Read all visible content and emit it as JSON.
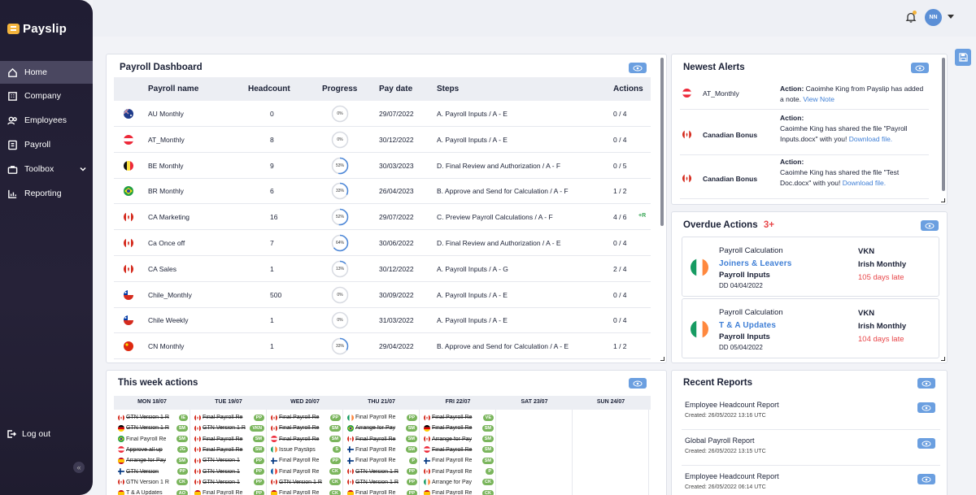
{
  "app": {
    "name": "Payslip"
  },
  "sidebar": {
    "items": [
      {
        "label": "Home",
        "icon": "home-icon"
      },
      {
        "label": "Company",
        "icon": "building-icon"
      },
      {
        "label": "Employees",
        "icon": "people-icon"
      },
      {
        "label": "Payroll",
        "icon": "payroll-icon"
      },
      {
        "label": "Toolbox",
        "icon": "toolbox-icon"
      },
      {
        "label": "Reporting",
        "icon": "chart-icon"
      }
    ],
    "logout": "Log out"
  },
  "topbar": {
    "avatar_initials": "NN"
  },
  "dashboard": {
    "title": "Payroll Dashboard",
    "columns": [
      "Payroll name",
      "Headcount",
      "Progress",
      "Pay date",
      "Steps",
      "Actions"
    ],
    "rows": [
      {
        "flag": "AU",
        "name": "AU Monthly",
        "headcount": "0",
        "progress": 0,
        "progress_label": "0%",
        "pay_date": "29/07/2022",
        "steps": "A. Payroll Inputs / A - E",
        "actions": "0 / 4",
        "extra": ""
      },
      {
        "flag": "AT",
        "name": "AT_Monthly",
        "headcount": "8",
        "progress": 0,
        "progress_label": "0%",
        "pay_date": "30/12/2022",
        "steps": "A. Payroll Inputs / A - E",
        "actions": "0 / 4",
        "extra": ""
      },
      {
        "flag": "BE",
        "name": "BE Monthly",
        "headcount": "9",
        "progress": 53,
        "progress_label": "53%",
        "pay_date": "30/03/2023",
        "steps": "D. Final Review and Authorization / A - F",
        "actions": "0 / 5",
        "extra": ""
      },
      {
        "flag": "BR",
        "name": "BR Monthly",
        "headcount": "6",
        "progress": 33,
        "progress_label": "33%",
        "pay_date": "26/04/2023",
        "steps": "B. Approve and Send for Calculation / A - F",
        "actions": "1 / 2",
        "extra": ""
      },
      {
        "flag": "CA",
        "name": "CA Marketing",
        "headcount": "16",
        "progress": 52,
        "progress_label": "52%",
        "pay_date": "29/07/2022",
        "steps": "C. Preview Payroll Calculations / A - F",
        "actions": "4 / 6",
        "extra": "+R"
      },
      {
        "flag": "CA",
        "name": "Ca Once off",
        "headcount": "7",
        "progress": 64,
        "progress_label": "64%",
        "pay_date": "30/06/2022",
        "steps": "D. Final Review and Authorization / A - E",
        "actions": "0 / 4",
        "extra": ""
      },
      {
        "flag": "CA",
        "name": "CA Sales",
        "headcount": "1",
        "progress": 13,
        "progress_label": "13%",
        "pay_date": "30/12/2022",
        "steps": "A. Payroll Inputs / A - G",
        "actions": "2 / 4",
        "extra": ""
      },
      {
        "flag": "CL",
        "name": "Chile_Monthly",
        "headcount": "500",
        "progress": 0,
        "progress_label": "0%",
        "pay_date": "30/09/2022",
        "steps": "A. Payroll Inputs / A - E",
        "actions": "0 / 4",
        "extra": ""
      },
      {
        "flag": "CL",
        "name": "Chile Weekly",
        "headcount": "1",
        "progress": 0,
        "progress_label": "0%",
        "pay_date": "31/03/2022",
        "steps": "A. Payroll Inputs / A - E",
        "actions": "0 / 4",
        "extra": ""
      },
      {
        "flag": "CN",
        "name": "CN Monthly",
        "headcount": "1",
        "progress": 33,
        "progress_label": "33%",
        "pay_date": "29/04/2022",
        "steps": "B. Approve and Send for Calculation / A - E",
        "actions": "1 / 2",
        "extra": ""
      }
    ]
  },
  "alerts": {
    "title": "Newest Alerts",
    "items": [
      {
        "flag": "AT",
        "name": "AT_Monthly",
        "label": "Action:",
        "text": "Caoimhe King from Payslip has added a note.",
        "link": "View Note"
      },
      {
        "flag": "CA",
        "name": "Canadian Bonus",
        "label": "Action:",
        "text": "Caoimhe King has shared the file \"Payroll Inputs.docx\" with you!",
        "link": "Download file."
      },
      {
        "flag": "CA",
        "name": "Canadian Bonus",
        "label": "Action:",
        "text": "Caoimhe King has shared the file \"Test Doc.docx\" with you!",
        "link": "Download file."
      }
    ]
  },
  "overdue": {
    "title": "Overdue Actions",
    "count": "3+",
    "items": [
      {
        "flag": "IE",
        "type": "Payroll Calculation",
        "link": "Joiners & Leavers",
        "step": "Payroll Inputs",
        "due": "DD 04/04/2022",
        "company": "VKN",
        "payroll": "Irish Monthly",
        "late": "105 days late"
      },
      {
        "flag": "IE",
        "type": "Payroll Calculation",
        "link": "T & A Updates",
        "step": "Payroll Inputs",
        "due": "DD 05/04/2022",
        "company": "VKN",
        "payroll": "Irish Monthly",
        "late": "104 days late"
      }
    ]
  },
  "week": {
    "title": "This week actions",
    "days": [
      "MON 18/07",
      "TUE 19/07",
      "WED 20/07",
      "THU 21/07",
      "FRI 22/07",
      "SAT 23/07",
      "SUN 24/07"
    ],
    "tasks": [
      [
        {
          "flag": "CA",
          "label": "GTN Version 1 R",
          "badge": "IE",
          "s": true
        },
        {
          "flag": "DE",
          "label": "GTN Version 1 R",
          "badge": "SM",
          "s": true
        },
        {
          "flag": "BR",
          "label": "Final Payroll Re",
          "badge": "SM",
          "s": false
        },
        {
          "flag": "AT",
          "label": "Approve all up",
          "badge": "JG",
          "s": true
        },
        {
          "flag": "ES",
          "label": "Arrange for Pay",
          "badge": "SM",
          "s": true
        },
        {
          "flag": "FI",
          "label": "GTN Version",
          "badge": "PP",
          "s": true
        },
        {
          "flag": "CA",
          "label": "GTN Version 1 R",
          "badge": "CK",
          "s": false
        },
        {
          "flag": "ES",
          "label": "T & A Updates",
          "badge": "AO",
          "s": false
        }
      ],
      [
        {
          "flag": "CA",
          "label": "Final Payroll Re",
          "badge": "PP",
          "s": true
        },
        {
          "flag": "CA",
          "label": "GTN Version 1 R",
          "badge": "VKN",
          "s": true
        },
        {
          "flag": "CA",
          "label": "Final Payroll Re",
          "badge": "SM",
          "s": true
        },
        {
          "flag": "CA",
          "label": "Final Payroll Re",
          "badge": "SM",
          "s": true
        },
        {
          "flag": "CA",
          "label": "GTN Version 1",
          "badge": "PP",
          "s": true
        },
        {
          "flag": "CA",
          "label": "GTN Version 1",
          "badge": "PP",
          "s": true
        },
        {
          "flag": "CA",
          "label": "GTN Version 1",
          "badge": "PP",
          "s": true
        },
        {
          "flag": "ES",
          "label": "Final Payroll Re",
          "badge": "PP",
          "s": false
        }
      ],
      [
        {
          "flag": "CA",
          "label": "Final Payroll Re",
          "badge": "PP",
          "s": true
        },
        {
          "flag": "CA",
          "label": "Final Payroll Re",
          "badge": "SM",
          "s": true
        },
        {
          "flag": "AT",
          "label": "Final Payroll Re",
          "badge": "SM",
          "s": true
        },
        {
          "flag": "IE",
          "label": "Issue Payslips",
          "badge": "S",
          "s": false
        },
        {
          "flag": "FI",
          "label": "Final Payroll Re",
          "badge": "PP",
          "s": false
        },
        {
          "flag": "FR",
          "label": "Final Payroll Re",
          "badge": "CK",
          "s": false
        },
        {
          "flag": "CA",
          "label": "GTN Version 1 R",
          "badge": "CK",
          "s": true
        },
        {
          "flag": "ES",
          "label": "Final Payroll Re",
          "badge": "CK",
          "s": false
        }
      ],
      [
        {
          "flag": "IE",
          "label": "Final Payroll Re",
          "badge": "PP",
          "s": false
        },
        {
          "flag": "BR",
          "label": "Arrange for Pay",
          "badge": "SM",
          "s": true
        },
        {
          "flag": "CA",
          "label": "Final Payroll Re",
          "badge": "SM",
          "s": true
        },
        {
          "flag": "FI",
          "label": "Final Payroll Re",
          "badge": "SM",
          "s": false
        },
        {
          "flag": "FI",
          "label": "Final Payroll Re",
          "badge": "P",
          "s": false
        },
        {
          "flag": "CA",
          "label": "GTN Version 1 R",
          "badge": "PP",
          "s": true
        },
        {
          "flag": "CA",
          "label": "GTN Version 1 R",
          "badge": "PP",
          "s": true
        },
        {
          "flag": "ES",
          "label": "Final Payroll Re",
          "badge": "PP",
          "s": false
        }
      ],
      [
        {
          "flag": "CA",
          "label": "Final Payroll Re",
          "badge": "VE",
          "s": true
        },
        {
          "flag": "DE",
          "label": "Final Payroll Re",
          "badge": "SM",
          "s": true
        },
        {
          "flag": "CA",
          "label": "Arrange for Pay",
          "badge": "SM",
          "s": true
        },
        {
          "flag": "AT",
          "label": "Final Payroll Re",
          "badge": "SM",
          "s": true
        },
        {
          "flag": "FI",
          "label": "Final Payroll Re",
          "badge": "SM",
          "s": false
        },
        {
          "flag": "CA",
          "label": "Final Payroll Re",
          "badge": "P",
          "s": false
        },
        {
          "flag": "IE",
          "label": "Arrange for Pay",
          "badge": "CK",
          "s": false
        },
        {
          "flag": "ES",
          "label": "Final Payroll Re",
          "badge": "CK",
          "s": false
        }
      ],
      [],
      []
    ]
  },
  "reports": {
    "title": "Recent Reports",
    "items": [
      {
        "name": "Employee Headcount Report",
        "created": "Created: 26/05/2022 13:16 UTC"
      },
      {
        "name": "Global Payroll Report",
        "created": "Created: 26/05/2022 13:15 UTC"
      },
      {
        "name": "Employee Headcount Report",
        "created": "Created: 26/05/2022 06:14 UTC"
      }
    ]
  },
  "colors": {
    "accent": "#6b9fe0",
    "progress": "#4a86d8",
    "late": "#e8474a",
    "badge": "#7ab55c"
  }
}
